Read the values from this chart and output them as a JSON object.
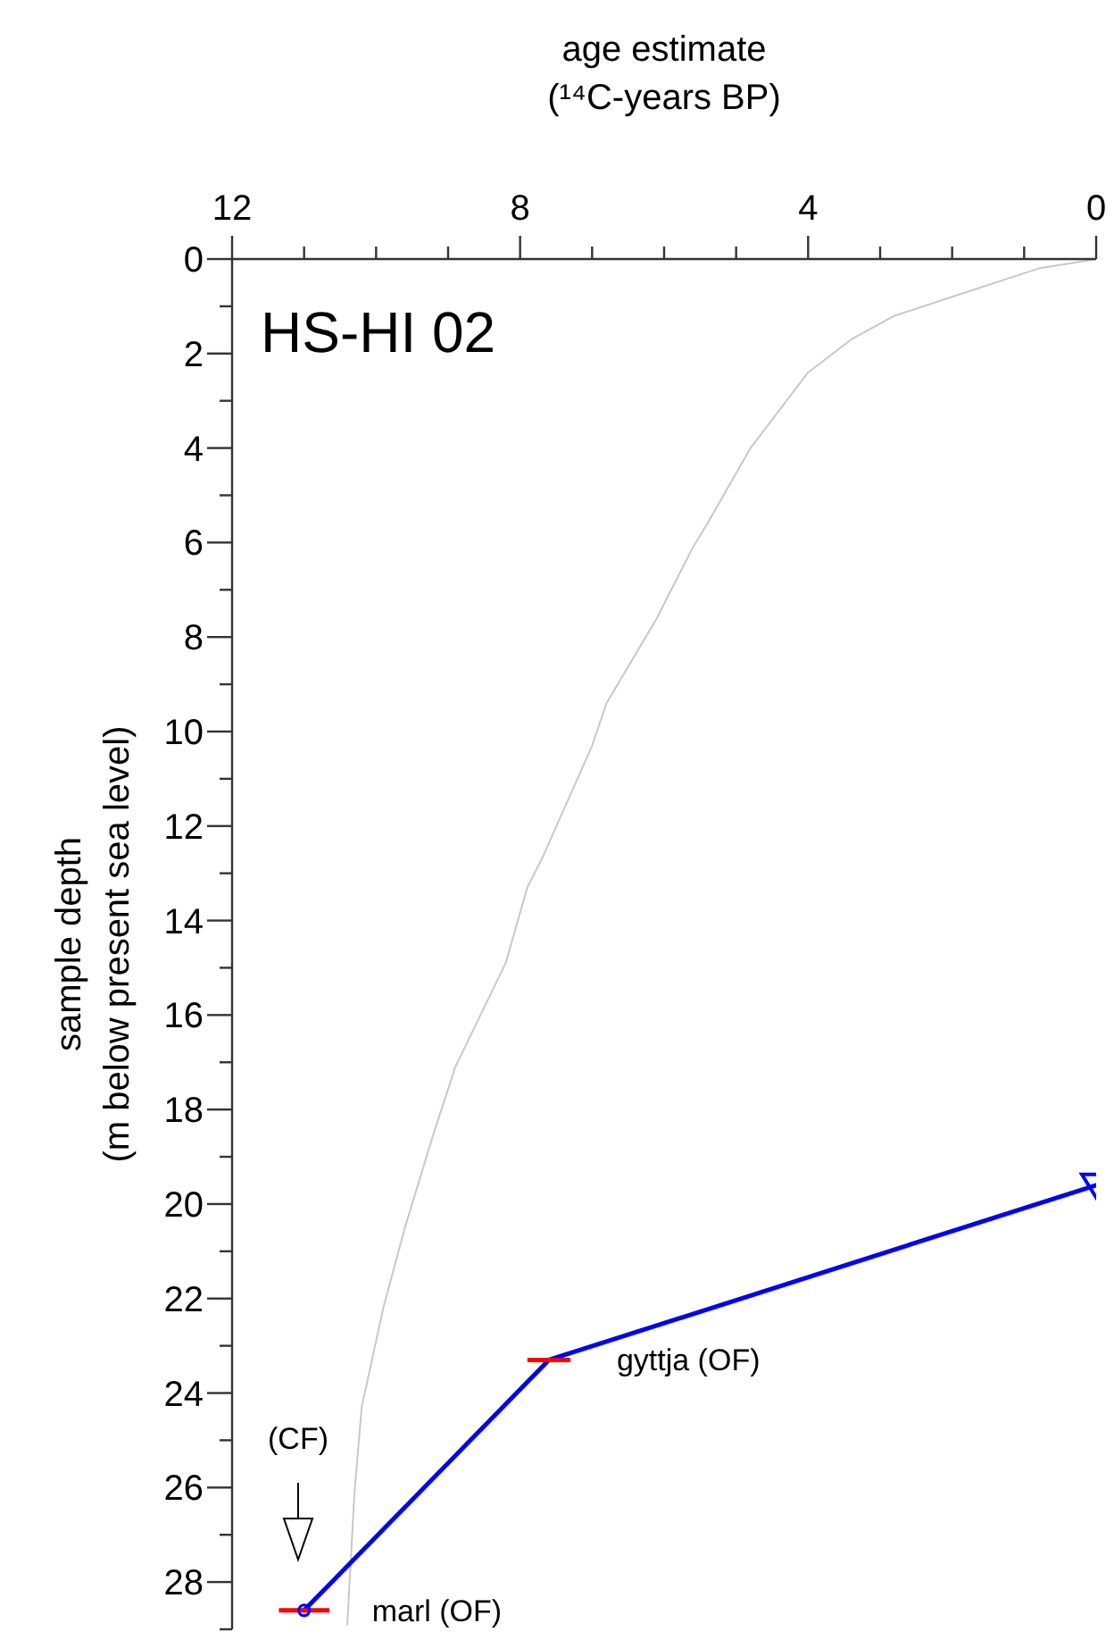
{
  "chart_data": {
    "type": "line",
    "title": "HS-HI 02",
    "xlabel": "age estimate\n(¹⁴C-years BP)",
    "ylabel": "sample depth\n(m below present sea level)",
    "xlim": [
      12,
      0
    ],
    "xticks": [
      12,
      {
        "value": 11,
        "label": null
      },
      {
        "value": 10,
        "label": null
      },
      {
        "value": 9,
        "label": null
      },
      8,
      {
        "value": 7,
        "label": null
      },
      {
        "value": 6,
        "label": null
      },
      {
        "value": 5,
        "label": null
      },
      4,
      {
        "value": 3,
        "label": null
      },
      {
        "value": 2,
        "label": null
      },
      {
        "value": 1,
        "label": null
      },
      0
    ],
    "ylim": [
      29,
      0
    ],
    "yticks": [
      0,
      {
        "value": 1,
        "label": null
      },
      2,
      {
        "value": 3,
        "label": null
      },
      4,
      {
        "value": 5,
        "label": null
      },
      6,
      {
        "value": 7,
        "label": null
      },
      8,
      {
        "value": 9,
        "label": null
      },
      10,
      {
        "value": 11,
        "label": null
      },
      12,
      {
        "value": 13,
        "label": null
      },
      14,
      {
        "value": 15,
        "label": null
      },
      16,
      {
        "value": 17,
        "label": null
      },
      18,
      {
        "value": 19,
        "label": null
      },
      20,
      {
        "value": 21,
        "label": null
      },
      22,
      {
        "value": 23,
        "label": null
      },
      24,
      {
        "value": 25,
        "label": null
      },
      26,
      {
        "value": 27,
        "label": null
      },
      28,
      {
        "value": 29,
        "label": null
      }
    ],
    "grid": false,
    "series": [
      {
        "color": "#c8c8c8",
        "marker": "none",
        "x": [
          0,
          0.8,
          2.0,
          2.8,
          3.4,
          4.0,
          4.8,
          5.4,
          5.6,
          6.1,
          6.8,
          7.0,
          7.7,
          7.9,
          8.2,
          8.9,
          9.2,
          9.6,
          9.9,
          10.2,
          10.3,
          10.4
        ],
        "values": [
          0,
          0.2,
          0.8,
          1.2,
          1.7,
          2.4,
          4.0,
          5.6,
          6.1,
          7.6,
          9.4,
          10.3,
          12.7,
          13.3,
          14.9,
          17.1,
          18.5,
          20.5,
          22.2,
          24.3,
          26.1,
          28.9
        ]
      },
      {
        "color": "#0000ff",
        "marker": "none",
        "x": [
          0,
          7.6,
          11.0
        ],
        "values": [
          19.6,
          23.3,
          28.6
        ],
        "xerrors": [
          null,
          0.3,
          0.35
        ]
      },
      {
        "type": "scatter",
        "color": "#0000ff",
        "marker": "triangle",
        "x": [
          0
        ],
        "values": [
          19.6
        ]
      },
      {
        "type": "scatter",
        "color": "#0000ff",
        "marker": "circle",
        "x": [
          11.0
        ],
        "values": [
          28.6
        ]
      }
    ],
    "annotations": [
      {
        "text": "gyttja (OF)",
        "x": 7.6,
        "y": 23.3
      },
      {
        "text": "marl (OF)",
        "x": 11.0,
        "y": 28.6
      },
      "(CF)"
    ]
  }
}
